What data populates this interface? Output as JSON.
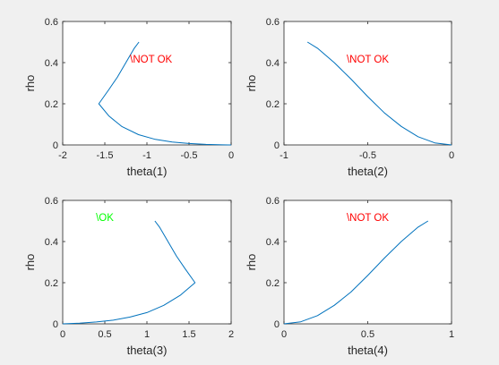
{
  "chart_data": [
    {
      "type": "line",
      "xlabel": "theta(1)",
      "ylabel": "rho",
      "xlim": [
        -2,
        0
      ],
      "ylim": [
        0,
        0.6
      ],
      "xticks": [
        "-2",
        "-1.5",
        "-1",
        "-0.5",
        "0"
      ],
      "yticks": [
        "0",
        "0.2",
        "0.4",
        "0.6"
      ],
      "annotation": {
        "text": "\\NOT OK",
        "color": "#ff0000",
        "x": -0.95,
        "y": 0.4
      },
      "grid": false,
      "series": [
        {
          "color": "#0072bd",
          "x": [
            -1.095,
            -1.15,
            -1.25,
            -1.35,
            -1.45,
            -1.5708,
            -1.45,
            -1.3,
            -1.1,
            -0.9,
            -0.7,
            -0.5,
            -0.3,
            -0.1,
            0
          ],
          "y": [
            0.5,
            0.47,
            0.4,
            0.33,
            0.27,
            0.2,
            0.14,
            0.09,
            0.05,
            0.027,
            0.014,
            0.007,
            0.0025,
            0.0003,
            0
          ]
        }
      ]
    },
    {
      "type": "line",
      "xlabel": "theta(2)",
      "ylabel": "rho",
      "xlim": [
        -1,
        0
      ],
      "ylim": [
        0,
        0.6
      ],
      "xticks": [
        "-1",
        "-0.5",
        "0"
      ],
      "yticks": [
        "0",
        "0.2",
        "0.4",
        "0.6"
      ],
      "annotation": {
        "text": "\\NOT OK",
        "color": "#ff0000",
        "x": -0.5,
        "y": 0.4
      },
      "grid": false,
      "series": [
        {
          "color": "#0072bd",
          "x": [
            -0.86,
            -0.8,
            -0.7,
            -0.6,
            -0.5,
            -0.4,
            -0.3,
            -0.2,
            -0.1,
            0
          ],
          "y": [
            0.5,
            0.47,
            0.4,
            0.32,
            0.235,
            0.155,
            0.09,
            0.04,
            0.01,
            0
          ]
        }
      ]
    },
    {
      "type": "line",
      "xlabel": "theta(3)",
      "ylabel": "rho",
      "xlim": [
        0,
        2
      ],
      "ylim": [
        0,
        0.6
      ],
      "xticks": [
        "0",
        "0.5",
        "1",
        "1.5",
        "2"
      ],
      "yticks": [
        "0",
        "0.2",
        "0.4",
        "0.6"
      ],
      "annotation": {
        "text": "\\OK",
        "color": "#00ff00",
        "x": 0.5,
        "y": 0.5
      },
      "grid": false,
      "series": [
        {
          "color": "#0072bd",
          "x": [
            0,
            0.2,
            0.4,
            0.6,
            0.8,
            1.0,
            1.2,
            1.4,
            1.5708,
            1.45,
            1.35,
            1.25,
            1.15,
            1.095
          ],
          "y": [
            0,
            0.003,
            0.009,
            0.018,
            0.033,
            0.055,
            0.09,
            0.14,
            0.2,
            0.27,
            0.33,
            0.4,
            0.47,
            0.5
          ]
        }
      ]
    },
    {
      "type": "line",
      "xlabel": "theta(4)",
      "ylabel": "rho",
      "xlim": [
        0,
        1
      ],
      "ylim": [
        0,
        0.6
      ],
      "xticks": [
        "0",
        "0.5",
        "1"
      ],
      "yticks": [
        "0",
        "0.2",
        "0.4",
        "0.6"
      ],
      "annotation": {
        "text": "\\NOT OK",
        "color": "#ff0000",
        "x": 0.5,
        "y": 0.5
      },
      "grid": false,
      "series": [
        {
          "color": "#0072bd",
          "x": [
            0,
            0.1,
            0.2,
            0.3,
            0.4,
            0.5,
            0.6,
            0.7,
            0.8,
            0.86
          ],
          "y": [
            0,
            0.01,
            0.04,
            0.09,
            0.155,
            0.235,
            0.32,
            0.4,
            0.47,
            0.5
          ]
        }
      ]
    }
  ]
}
